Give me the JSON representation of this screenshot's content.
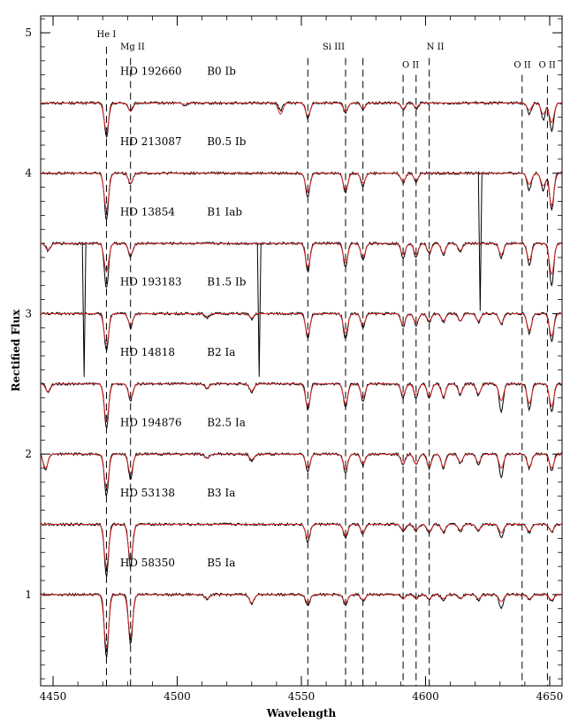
{
  "chart_data": {
    "type": "line",
    "title": "",
    "xlabel": "Wavelength",
    "ylabel": "Rectified Flux",
    "xlim": [
      4445,
      4655
    ],
    "ylim": [
      0.35,
      5.12
    ],
    "x_ticks": [
      4450,
      4500,
      4550,
      4600,
      4650
    ],
    "x_tick_labels": [
      "4450",
      "4500",
      "4550",
      "4600",
      "4650"
    ],
    "y_ticks": [
      1,
      2,
      3,
      4,
      5
    ],
    "y_tick_labels": [
      "1",
      "2",
      "3",
      "4",
      "5"
    ],
    "x_minor_step": 10,
    "y_minor_step": 0.1,
    "grid": false,
    "colors": {
      "observed": "#000000",
      "model": "#d62728"
    },
    "line_ids": [
      {
        "label": "He I",
        "positions": [
          4471.5
        ]
      },
      {
        "label": "Mg II",
        "positions": [
          4481.2
        ]
      },
      {
        "label": "Si III",
        "positions": [
          4552.6,
          4567.8,
          4574.8
        ]
      },
      {
        "label": "O II",
        "positions": [
          4590.97,
          4596.2
        ]
      },
      {
        "label": "N II",
        "positions": [
          4601.5
        ]
      },
      {
        "label": "O II",
        "positions": [
          4638.9
        ]
      },
      {
        "label": "O II",
        "positions": [
          4649.1
        ]
      }
    ],
    "line_id_labels": [
      {
        "text": "He I",
        "x": 4471.5,
        "y": 4.97
      },
      {
        "text": "Mg II",
        "x": 4482.0,
        "y": 4.88
      },
      {
        "text": "Si III",
        "x": 4563.0,
        "y": 4.88
      },
      {
        "text": "O II",
        "x": 4594.0,
        "y": 4.75
      },
      {
        "text": "N II",
        "x": 4604.0,
        "y": 4.88
      },
      {
        "text": "O II",
        "x": 4639.0,
        "y": 4.75
      },
      {
        "text": "O II",
        "x": 4649.0,
        "y": 4.75
      }
    ],
    "star_label_y_offset": 0.2,
    "spectra": [
      {
        "star": "HD 192660",
        "sptype": "B0 Ib",
        "offset": 4.5,
        "absorption": [
          {
            "x": 4471.5,
            "depth": 0.24,
            "model": 0.2
          },
          {
            "x": 4481.2,
            "depth": 0.06,
            "model": 0.06
          },
          {
            "x": 4503.0,
            "depth": 0.02,
            "model": 0.01
          },
          {
            "x": 4541.6,
            "depth": 0.05,
            "model": 0.08
          },
          {
            "x": 4552.6,
            "depth": 0.11,
            "model": 0.09
          },
          {
            "x": 4567.8,
            "depth": 0.07,
            "model": 0.06
          },
          {
            "x": 4574.8,
            "depth": 0.05,
            "model": 0.04
          },
          {
            "x": 4590.97,
            "depth": 0.05,
            "model": 0.04
          },
          {
            "x": 4596.2,
            "depth": 0.04,
            "model": 0.03
          },
          {
            "x": 4641.8,
            "depth": 0.08,
            "model": 0.05
          },
          {
            "x": 4647.4,
            "depth": 0.12,
            "model": 0.08
          },
          {
            "x": 4650.8,
            "depth": 0.2,
            "model": 0.14
          }
        ],
        "spikes": []
      },
      {
        "star": "HD 213087",
        "sptype": "B0.5 Ib",
        "offset": 4.0,
        "absorption": [
          {
            "x": 4471.5,
            "depth": 0.33,
            "model": 0.26
          },
          {
            "x": 4481.2,
            "depth": 0.08,
            "model": 0.07
          },
          {
            "x": 4552.6,
            "depth": 0.17,
            "model": 0.14
          },
          {
            "x": 4567.8,
            "depth": 0.14,
            "model": 0.12
          },
          {
            "x": 4574.8,
            "depth": 0.09,
            "model": 0.07
          },
          {
            "x": 4590.97,
            "depth": 0.07,
            "model": 0.06
          },
          {
            "x": 4596.2,
            "depth": 0.06,
            "model": 0.05
          },
          {
            "x": 4641.8,
            "depth": 0.12,
            "model": 0.08
          },
          {
            "x": 4647.4,
            "depth": 0.12,
            "model": 0.09
          },
          {
            "x": 4650.8,
            "depth": 0.26,
            "model": 0.23
          }
        ],
        "spikes": [
          {
            "x": 4622.0,
            "top": 4.0,
            "bottom": 3.02
          }
        ]
      },
      {
        "star": "HD 13854",
        "sptype": "B1 Iab",
        "offset": 3.5,
        "absorption": [
          {
            "x": 4448.0,
            "depth": 0.05,
            "model": 0.05
          },
          {
            "x": 4471.5,
            "depth": 0.32,
            "model": 0.2
          },
          {
            "x": 4481.2,
            "depth": 0.1,
            "model": 0.08
          },
          {
            "x": 4552.6,
            "depth": 0.2,
            "model": 0.17
          },
          {
            "x": 4567.8,
            "depth": 0.17,
            "model": 0.14
          },
          {
            "x": 4574.8,
            "depth": 0.12,
            "model": 0.1
          },
          {
            "x": 4590.97,
            "depth": 0.1,
            "model": 0.08
          },
          {
            "x": 4596.2,
            "depth": 0.1,
            "model": 0.08
          },
          {
            "x": 4601.5,
            "depth": 0.07,
            "model": 0.06
          },
          {
            "x": 4607.2,
            "depth": 0.08,
            "model": 0.07
          },
          {
            "x": 4614.0,
            "depth": 0.06,
            "model": 0.05
          },
          {
            "x": 4630.5,
            "depth": 0.1,
            "model": 0.08
          },
          {
            "x": 4641.8,
            "depth": 0.15,
            "model": 0.12
          },
          {
            "x": 4650.8,
            "depth": 0.3,
            "model": 0.22
          }
        ],
        "spikes": [
          {
            "x": 4462.5,
            "top": 3.5,
            "bottom": 2.55
          },
          {
            "x": 4533.0,
            "top": 3.5,
            "bottom": 2.55
          }
        ]
      },
      {
        "star": "HD 193183",
        "sptype": "B1.5 Ib",
        "offset": 3.0,
        "absorption": [
          {
            "x": 4471.5,
            "depth": 0.26,
            "model": 0.22
          },
          {
            "x": 4481.2,
            "depth": 0.1,
            "model": 0.08
          },
          {
            "x": 4512.0,
            "depth": 0.03,
            "model": 0.02
          },
          {
            "x": 4530.0,
            "depth": 0.04,
            "model": 0.03
          },
          {
            "x": 4552.6,
            "depth": 0.18,
            "model": 0.15
          },
          {
            "x": 4567.8,
            "depth": 0.18,
            "model": 0.14
          },
          {
            "x": 4574.8,
            "depth": 0.1,
            "model": 0.08
          },
          {
            "x": 4590.97,
            "depth": 0.09,
            "model": 0.08
          },
          {
            "x": 4596.2,
            "depth": 0.08,
            "model": 0.07
          },
          {
            "x": 4601.5,
            "depth": 0.06,
            "model": 0.05
          },
          {
            "x": 4607.2,
            "depth": 0.06,
            "model": 0.05
          },
          {
            "x": 4614.0,
            "depth": 0.06,
            "model": 0.05
          },
          {
            "x": 4621.3,
            "depth": 0.06,
            "model": 0.05
          },
          {
            "x": 4630.5,
            "depth": 0.08,
            "model": 0.07
          },
          {
            "x": 4641.8,
            "depth": 0.14,
            "model": 0.12
          },
          {
            "x": 4650.8,
            "depth": 0.2,
            "model": 0.16
          }
        ],
        "spikes": []
      },
      {
        "star": "HD 14818",
        "sptype": "B2 Ia",
        "offset": 2.5,
        "absorption": [
          {
            "x": 4448.0,
            "depth": 0.06,
            "model": 0.06
          },
          {
            "x": 4471.5,
            "depth": 0.32,
            "model": 0.26
          },
          {
            "x": 4481.2,
            "depth": 0.12,
            "model": 0.1
          },
          {
            "x": 4512.0,
            "depth": 0.03,
            "model": 0.03
          },
          {
            "x": 4530.0,
            "depth": 0.06,
            "model": 0.05
          },
          {
            "x": 4552.6,
            "depth": 0.18,
            "model": 0.16
          },
          {
            "x": 4567.8,
            "depth": 0.16,
            "model": 0.14
          },
          {
            "x": 4574.8,
            "depth": 0.12,
            "model": 0.1
          },
          {
            "x": 4590.97,
            "depth": 0.1,
            "model": 0.08
          },
          {
            "x": 4596.2,
            "depth": 0.1,
            "model": 0.08
          },
          {
            "x": 4601.5,
            "depth": 0.1,
            "model": 0.09
          },
          {
            "x": 4607.2,
            "depth": 0.1,
            "model": 0.09
          },
          {
            "x": 4614.0,
            "depth": 0.08,
            "model": 0.07
          },
          {
            "x": 4621.3,
            "depth": 0.08,
            "model": 0.07
          },
          {
            "x": 4630.5,
            "depth": 0.2,
            "model": 0.12
          },
          {
            "x": 4641.8,
            "depth": 0.18,
            "model": 0.14
          },
          {
            "x": 4650.8,
            "depth": 0.2,
            "model": 0.16
          }
        ],
        "spikes": []
      },
      {
        "star": "HD 194876",
        "sptype": "B2.5 Ia",
        "offset": 2.0,
        "absorption": [
          {
            "x": 4447.0,
            "depth": 0.12,
            "model": 0.1
          },
          {
            "x": 4471.5,
            "depth": 0.3,
            "model": 0.24
          },
          {
            "x": 4481.2,
            "depth": 0.18,
            "model": 0.14
          },
          {
            "x": 4512.0,
            "depth": 0.03,
            "model": 0.03
          },
          {
            "x": 4530.0,
            "depth": 0.05,
            "model": 0.04
          },
          {
            "x": 4552.6,
            "depth": 0.12,
            "model": 0.1
          },
          {
            "x": 4567.8,
            "depth": 0.13,
            "model": 0.11
          },
          {
            "x": 4574.8,
            "depth": 0.08,
            "model": 0.07
          },
          {
            "x": 4590.97,
            "depth": 0.08,
            "model": 0.07
          },
          {
            "x": 4596.2,
            "depth": 0.08,
            "model": 0.07
          },
          {
            "x": 4601.5,
            "depth": 0.1,
            "model": 0.09
          },
          {
            "x": 4607.2,
            "depth": 0.1,
            "model": 0.09
          },
          {
            "x": 4614.0,
            "depth": 0.07,
            "model": 0.06
          },
          {
            "x": 4621.3,
            "depth": 0.07,
            "model": 0.06
          },
          {
            "x": 4630.5,
            "depth": 0.16,
            "model": 0.1
          },
          {
            "x": 4641.8,
            "depth": 0.1,
            "model": 0.09
          },
          {
            "x": 4650.8,
            "depth": 0.12,
            "model": 0.1
          }
        ],
        "spikes": []
      },
      {
        "star": "HD 53138",
        "sptype": "B3 Ia",
        "offset": 1.5,
        "absorption": [
          {
            "x": 4471.5,
            "depth": 0.37,
            "model": 0.3
          },
          {
            "x": 4481.2,
            "depth": 0.3,
            "model": 0.25
          },
          {
            "x": 4552.6,
            "depth": 0.13,
            "model": 0.1
          },
          {
            "x": 4567.8,
            "depth": 0.1,
            "model": 0.08
          },
          {
            "x": 4574.8,
            "depth": 0.07,
            "model": 0.06
          },
          {
            "x": 4590.97,
            "depth": 0.05,
            "model": 0.04
          },
          {
            "x": 4596.2,
            "depth": 0.05,
            "model": 0.04
          },
          {
            "x": 4601.5,
            "depth": 0.06,
            "model": 0.05
          },
          {
            "x": 4607.2,
            "depth": 0.06,
            "model": 0.05
          },
          {
            "x": 4614.0,
            "depth": 0.05,
            "model": 0.04
          },
          {
            "x": 4621.3,
            "depth": 0.05,
            "model": 0.04
          },
          {
            "x": 4630.5,
            "depth": 0.1,
            "model": 0.06
          },
          {
            "x": 4641.8,
            "depth": 0.06,
            "model": 0.05
          },
          {
            "x": 4650.8,
            "depth": 0.06,
            "model": 0.05
          }
        ],
        "spikes": []
      },
      {
        "star": "HD 58350",
        "sptype": "B5 Ia",
        "offset": 1.0,
        "absorption": [
          {
            "x": 4471.5,
            "depth": 0.45,
            "model": 0.38
          },
          {
            "x": 4481.2,
            "depth": 0.35,
            "model": 0.3
          },
          {
            "x": 4512.0,
            "depth": 0.03,
            "model": 0.03
          },
          {
            "x": 4530.0,
            "depth": 0.07,
            "model": 0.06
          },
          {
            "x": 4552.6,
            "depth": 0.08,
            "model": 0.06
          },
          {
            "x": 4567.8,
            "depth": 0.08,
            "model": 0.06
          },
          {
            "x": 4574.8,
            "depth": 0.05,
            "model": 0.04
          },
          {
            "x": 4590.97,
            "depth": 0.03,
            "model": 0.03
          },
          {
            "x": 4596.2,
            "depth": 0.03,
            "model": 0.03
          },
          {
            "x": 4601.5,
            "depth": 0.03,
            "model": 0.03
          },
          {
            "x": 4607.2,
            "depth": 0.04,
            "model": 0.03
          },
          {
            "x": 4614.0,
            "depth": 0.03,
            "model": 0.03
          },
          {
            "x": 4621.3,
            "depth": 0.04,
            "model": 0.03
          },
          {
            "x": 4630.5,
            "depth": 0.1,
            "model": 0.05
          },
          {
            "x": 4641.8,
            "depth": 0.04,
            "model": 0.03
          },
          {
            "x": 4650.8,
            "depth": 0.05,
            "model": 0.04
          }
        ],
        "spikes": []
      }
    ]
  }
}
